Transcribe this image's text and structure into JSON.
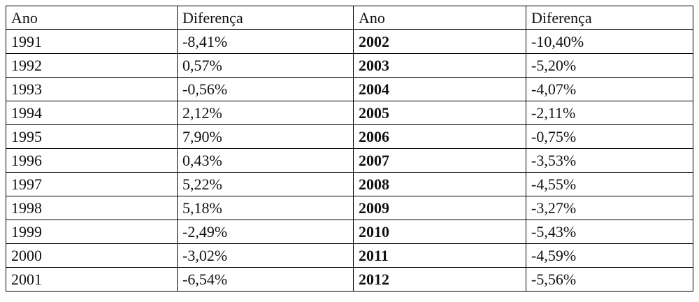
{
  "table": {
    "header": [
      "Ano",
      "Diferença",
      "Ano",
      "Diferença"
    ],
    "rows": [
      [
        "1991",
        "-8,41%",
        "2002",
        "-10,40%"
      ],
      [
        "1992",
        "0,57%",
        "2003",
        "-5,20%"
      ],
      [
        "1993",
        "-0,56%",
        "2004",
        "-4,07%"
      ],
      [
        "1994",
        "2,12%",
        "2005",
        "-2,11%"
      ],
      [
        "1995",
        "7,90%",
        "2006",
        "-0,75%"
      ],
      [
        "1996",
        "0,43%",
        "2007",
        "-3,53%"
      ],
      [
        "1997",
        "5,22%",
        "2008",
        "-4,55%"
      ],
      [
        "1998",
        "5,18%",
        "2009",
        "-3,27%"
      ],
      [
        "1999",
        "-2,49%",
        "2010",
        "-5,43%"
      ],
      [
        "2000",
        "-3,02%",
        "2011",
        "-4,59%"
      ],
      [
        "2001",
        "-6,54%",
        "2012",
        "-5,56%"
      ]
    ]
  }
}
